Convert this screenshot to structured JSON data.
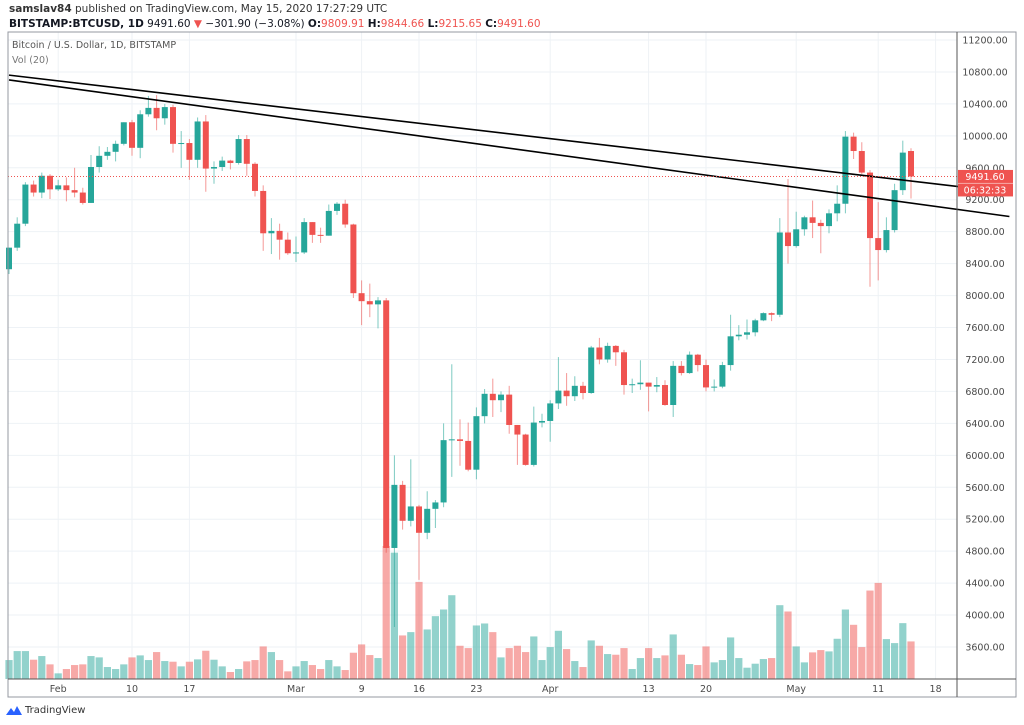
{
  "header": {
    "publisher": "samslav84",
    "published_text": "published on TradingView.com, May 15, 2020 17:27:29 UTC",
    "symbol": "BITSTAMP:BTCUSD, 1D",
    "last": "9491.60",
    "change_icon": "triangle-down-icon",
    "change": "−301.90 (−3.08%)",
    "o_label": "O:",
    "o": "9809.91",
    "h_label": "H:",
    "h": "9844.66",
    "l_label": "L:",
    "l": "9215.65",
    "c_label": "C:",
    "c": "9491.60"
  },
  "legend": {
    "title": "Bitcoin / U.S. Dollar, 1D, BITSTAMP",
    "volume": "Vol (20)"
  },
  "price_badge": "9491.60",
  "countdown_badge": "06:32:33",
  "brand": "TradingView",
  "colors": {
    "up": "#26a69a",
    "down": "#ef5350",
    "grid": "#eef2f6",
    "trendline": "#000000"
  },
  "chart_data": {
    "type": "candlestick",
    "y_ticks": [
      "11200.00",
      "10800.00",
      "10400.00",
      "10000.00",
      "9600.00",
      "9200.00",
      "8800.00",
      "8400.00",
      "8000.00",
      "7600.00",
      "7200.00",
      "6800.00",
      "6400.00",
      "6000.00",
      "5600.00",
      "5200.00",
      "4800.00",
      "4400.00",
      "4000.00",
      "3600.00"
    ],
    "ylim": [
      3600,
      11200
    ],
    "x_ticks": [
      {
        "label": "Feb",
        "date": "2020-02-01"
      },
      {
        "label": "10",
        "date": "2020-02-10"
      },
      {
        "label": "17",
        "date": "2020-02-17"
      },
      {
        "label": "Mar",
        "date": "2020-03-01"
      },
      {
        "label": "9",
        "date": "2020-03-09"
      },
      {
        "label": "16",
        "date": "2020-03-16"
      },
      {
        "label": "23",
        "date": "2020-03-23"
      },
      {
        "label": "Apr",
        "date": "2020-04-01"
      },
      {
        "label": "13",
        "date": "2020-04-13"
      },
      {
        "label": "20",
        "date": "2020-04-20"
      },
      {
        "label": "May",
        "date": "2020-05-01"
      },
      {
        "label": "11",
        "date": "2020-05-11"
      },
      {
        "label": "18",
        "date": "2020-05-18"
      }
    ],
    "grid": true,
    "last_price": 9491.6,
    "columns": [
      "date",
      "open",
      "high",
      "low",
      "close",
      "volume_relative"
    ],
    "candles": [
      [
        "2020-01-26",
        8330,
        8600,
        8270,
        8600,
        57
      ],
      [
        "2020-01-27",
        8600,
        8980,
        8560,
        8900,
        84
      ],
      [
        "2020-01-28",
        8900,
        9420,
        8870,
        9390,
        84
      ],
      [
        "2020-01-29",
        9390,
        9440,
        9240,
        9290,
        58
      ],
      [
        "2020-01-30",
        9290,
        9540,
        9220,
        9500,
        69
      ],
      [
        "2020-01-31",
        9500,
        9520,
        9210,
        9330,
        44
      ],
      [
        "2020-02-01",
        9330,
        9450,
        9310,
        9380,
        17
      ],
      [
        "2020-02-02",
        9380,
        9480,
        9180,
        9320,
        30
      ],
      [
        "2020-02-03",
        9320,
        9600,
        9230,
        9290,
        42
      ],
      [
        "2020-02-04",
        9290,
        9350,
        9140,
        9160,
        44
      ],
      [
        "2020-02-05",
        9160,
        9760,
        9160,
        9610,
        69
      ],
      [
        "2020-02-06",
        9610,
        9870,
        9540,
        9750,
        65
      ],
      [
        "2020-02-07",
        9750,
        9860,
        9700,
        9800,
        36
      ],
      [
        "2020-02-08",
        9800,
        9940,
        9680,
        9900,
        30
      ],
      [
        "2020-02-09",
        9900,
        10170,
        9880,
        10170,
        44
      ],
      [
        "2020-02-10",
        10170,
        10200,
        9750,
        9850,
        65
      ],
      [
        "2020-02-11",
        9850,
        10320,
        9720,
        10270,
        71
      ],
      [
        "2020-02-12",
        10270,
        10500,
        10240,
        10350,
        57
      ],
      [
        "2020-02-13",
        10350,
        10510,
        10070,
        10220,
        81
      ],
      [
        "2020-02-14",
        10220,
        10400,
        10140,
        10360,
        54
      ],
      [
        "2020-02-15",
        10360,
        10390,
        9790,
        9900,
        52
      ],
      [
        "2020-02-16",
        9900,
        10060,
        9600,
        9910,
        38
      ],
      [
        "2020-02-17",
        9910,
        9960,
        9450,
        9700,
        52
      ],
      [
        "2020-02-18",
        9700,
        10230,
        9600,
        10180,
        59
      ],
      [
        "2020-02-19",
        10180,
        10260,
        9300,
        9590,
        85
      ],
      [
        "2020-02-20",
        9590,
        9680,
        9400,
        9610,
        58
      ],
      [
        "2020-02-21",
        9610,
        9740,
        9560,
        9690,
        38
      ],
      [
        "2020-02-22",
        9690,
        9700,
        9580,
        9660,
        21
      ],
      [
        "2020-02-23",
        9660,
        10010,
        9640,
        9960,
        30
      ],
      [
        "2020-02-24",
        9960,
        10010,
        9500,
        9650,
        53
      ],
      [
        "2020-02-25",
        9650,
        9670,
        9240,
        9310,
        57
      ],
      [
        "2020-02-26",
        9310,
        9380,
        8560,
        8780,
        98
      ],
      [
        "2020-02-27",
        8780,
        8970,
        8520,
        8810,
        81
      ],
      [
        "2020-02-28",
        8810,
        8900,
        8450,
        8700,
        57
      ],
      [
        "2020-02-29",
        8700,
        8790,
        8510,
        8530,
        23
      ],
      [
        "2020-03-01",
        8530,
        8740,
        8420,
        8540,
        38
      ],
      [
        "2020-03-02",
        8540,
        8970,
        8520,
        8920,
        54
      ],
      [
        "2020-03-03",
        8920,
        8920,
        8660,
        8760,
        42
      ],
      [
        "2020-03-04",
        8760,
        8850,
        8660,
        8750,
        30
      ],
      [
        "2020-03-05",
        8750,
        9140,
        8750,
        9060,
        57
      ],
      [
        "2020-03-06",
        9060,
        9170,
        9010,
        9150,
        38
      ],
      [
        "2020-03-07",
        9150,
        9200,
        8850,
        8890,
        27
      ],
      [
        "2020-03-08",
        8890,
        8900,
        7970,
        8030,
        79
      ],
      [
        "2020-03-09",
        8030,
        8190,
        7630,
        7930,
        104
      ],
      [
        "2020-03-10",
        7930,
        8150,
        7730,
        7890,
        72
      ],
      [
        "2020-03-11",
        7890,
        7980,
        7590,
        7940,
        63
      ],
      [
        "2020-03-12",
        7940,
        7970,
        4780,
        4840,
        400
      ],
      [
        "2020-03-13",
        4840,
        6000,
        3850,
        5630,
        380
      ],
      [
        "2020-03-14",
        5630,
        5680,
        5070,
        5180,
        131
      ],
      [
        "2020-03-15",
        5180,
        5950,
        5110,
        5360,
        141
      ],
      [
        "2020-03-16",
        5360,
        5380,
        4440,
        5030,
        292
      ],
      [
        "2020-03-17",
        5030,
        5550,
        4950,
        5330,
        149
      ],
      [
        "2020-03-18",
        5330,
        5440,
        5090,
        5410,
        189
      ],
      [
        "2020-03-19",
        5410,
        6400,
        5350,
        6190,
        209
      ],
      [
        "2020-03-20",
        6190,
        7140,
        5730,
        6200,
        252
      ],
      [
        "2020-03-21",
        6200,
        6450,
        5870,
        6180,
        100
      ],
      [
        "2020-03-22",
        6180,
        6410,
        5800,
        5820,
        93
      ],
      [
        "2020-03-23",
        5820,
        6600,
        5700,
        6490,
        161
      ],
      [
        "2020-03-24",
        6490,
        6830,
        6400,
        6770,
        167
      ],
      [
        "2020-03-25",
        6770,
        6960,
        6480,
        6690,
        141
      ],
      [
        "2020-03-26",
        6690,
        6800,
        6540,
        6760,
        65
      ],
      [
        "2020-03-27",
        6760,
        6870,
        6270,
        6380,
        93
      ],
      [
        "2020-03-28",
        6380,
        6380,
        5880,
        6260,
        100
      ],
      [
        "2020-03-29",
        6260,
        6270,
        5870,
        5880,
        81
      ],
      [
        "2020-03-30",
        5880,
        6610,
        5860,
        6410,
        128
      ],
      [
        "2020-03-31",
        6410,
        6520,
        6350,
        6430,
        57
      ],
      [
        "2020-04-01",
        6430,
        6690,
        6170,
        6650,
        96
      ],
      [
        "2020-04-02",
        6650,
        7230,
        6580,
        6810,
        145
      ],
      [
        "2020-04-03",
        6810,
        7030,
        6620,
        6740,
        90
      ],
      [
        "2020-04-04",
        6740,
        6990,
        6680,
        6870,
        54
      ],
      [
        "2020-04-05",
        6870,
        6920,
        6700,
        6780,
        36
      ],
      [
        "2020-04-06",
        6780,
        7370,
        6770,
        7350,
        116
      ],
      [
        "2020-04-07",
        7350,
        7470,
        7140,
        7200,
        100
      ],
      [
        "2020-04-08",
        7200,
        7410,
        7160,
        7370,
        75
      ],
      [
        "2020-04-09",
        7370,
        7380,
        7120,
        7290,
        73
      ],
      [
        "2020-04-10",
        7290,
        7320,
        6760,
        6880,
        93
      ],
      [
        "2020-04-11",
        6880,
        6960,
        6780,
        6890,
        30
      ],
      [
        "2020-04-12",
        6890,
        7190,
        6820,
        6910,
        63
      ],
      [
        "2020-04-13",
        6910,
        6910,
        6550,
        6860,
        93
      ],
      [
        "2020-04-14",
        6860,
        6980,
        6790,
        6880,
        63
      ],
      [
        "2020-04-15",
        6880,
        6940,
        6620,
        6630,
        71
      ],
      [
        "2020-04-16",
        6630,
        7180,
        6480,
        7120,
        134
      ],
      [
        "2020-04-17",
        7120,
        7180,
        7000,
        7030,
        73
      ],
      [
        "2020-04-18",
        7030,
        7300,
        7020,
        7260,
        45
      ],
      [
        "2020-04-19",
        7260,
        7270,
        7050,
        7130,
        42
      ],
      [
        "2020-04-20",
        7130,
        7200,
        6800,
        6850,
        98
      ],
      [
        "2020-04-21",
        6850,
        6950,
        6800,
        6860,
        50
      ],
      [
        "2020-04-22",
        6860,
        7170,
        6840,
        7130,
        57
      ],
      [
        "2020-04-23",
        7130,
        7760,
        7060,
        7490,
        125
      ],
      [
        "2020-04-24",
        7490,
        7630,
        7440,
        7510,
        63
      ],
      [
        "2020-04-25",
        7510,
        7700,
        7450,
        7540,
        34
      ],
      [
        "2020-04-26",
        7540,
        7710,
        7490,
        7690,
        46
      ],
      [
        "2020-04-27",
        7690,
        7790,
        7680,
        7780,
        60
      ],
      [
        "2020-04-28",
        7780,
        7790,
        7680,
        7760,
        63
      ],
      [
        "2020-04-29",
        7760,
        8970,
        7730,
        8790,
        222
      ],
      [
        "2020-04-30",
        8790,
        9460,
        8400,
        8620,
        203
      ],
      [
        "2020-05-01",
        8620,
        9050,
        8600,
        8830,
        98
      ],
      [
        "2020-05-02",
        8830,
        9000,
        8750,
        8980,
        50
      ],
      [
        "2020-05-03",
        8980,
        9190,
        8720,
        8910,
        80
      ],
      [
        "2020-05-04",
        8910,
        8950,
        8530,
        8870,
        87
      ],
      [
        "2020-05-05",
        8870,
        9080,
        8780,
        9030,
        83
      ],
      [
        "2020-05-06",
        9030,
        9380,
        8930,
        9150,
        121
      ],
      [
        "2020-05-07",
        9150,
        10060,
        9030,
        9990,
        209
      ],
      [
        "2020-05-08",
        9990,
        10040,
        9710,
        9810,
        163
      ],
      [
        "2020-05-09",
        9810,
        9920,
        9520,
        9540,
        96
      ],
      [
        "2020-05-10",
        9540,
        9570,
        8110,
        8720,
        266
      ],
      [
        "2020-05-11",
        8720,
        9170,
        8190,
        8570,
        289
      ],
      [
        "2020-05-12",
        8570,
        8980,
        8540,
        8820,
        120
      ],
      [
        "2020-05-13",
        8820,
        9400,
        8790,
        9320,
        108
      ],
      [
        "2020-05-14",
        9320,
        9940,
        9260,
        9790,
        168
      ],
      [
        "2020-05-15",
        9809.91,
        9844.66,
        9215.65,
        9491.6,
        113
      ]
    ],
    "trendlines": [
      {
        "from": [
          "2020-01-26",
          10760
        ],
        "to": [
          "2020-05-27",
          9290
        ]
      },
      {
        "from": [
          "2020-01-26",
          10700
        ],
        "to": [
          "2020-05-27",
          8990
        ]
      }
    ]
  }
}
